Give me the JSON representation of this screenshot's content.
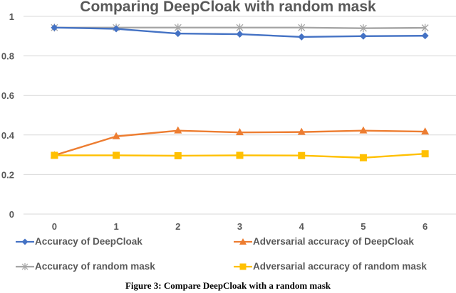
{
  "chart_data": {
    "type": "line",
    "title": "Comparing DeepCloak with random mask",
    "xlabel": "",
    "ylabel": "",
    "categories": [
      "0",
      "1",
      "2",
      "3",
      "4",
      "5",
      "6"
    ],
    "x": [
      0,
      1,
      2,
      3,
      4,
      5,
      6
    ],
    "ylim": [
      0,
      1
    ],
    "yticks": [
      "0",
      "0.2",
      "0.4",
      "0.6",
      "0.8",
      "1"
    ],
    "grid": true,
    "legend_position": "bottom",
    "series": [
      {
        "name": "Accuracy of DeepCloak",
        "color": "#4472C4",
        "marker": "diamond",
        "values": [
          0.943,
          0.937,
          0.913,
          0.91,
          0.896,
          0.9,
          0.902
        ]
      },
      {
        "name": "Adversarial accuracy of DeepCloak",
        "color": "#ED7D31",
        "marker": "triangle",
        "values": [
          0.297,
          0.393,
          0.422,
          0.413,
          0.415,
          0.422,
          0.417
        ]
      },
      {
        "name": "Accuracy of random mask",
        "color": "#A5A5A5",
        "marker": "star",
        "values": [
          0.943,
          0.943,
          0.943,
          0.943,
          0.943,
          0.94,
          0.942
        ]
      },
      {
        "name": "Adversarial accuracy of random mask",
        "color": "#FFC000",
        "marker": "square",
        "values": [
          0.297,
          0.297,
          0.295,
          0.297,
          0.296,
          0.285,
          0.305
        ]
      }
    ]
  },
  "caption": "Figure 3: Compare DeepCloak with a random mask"
}
